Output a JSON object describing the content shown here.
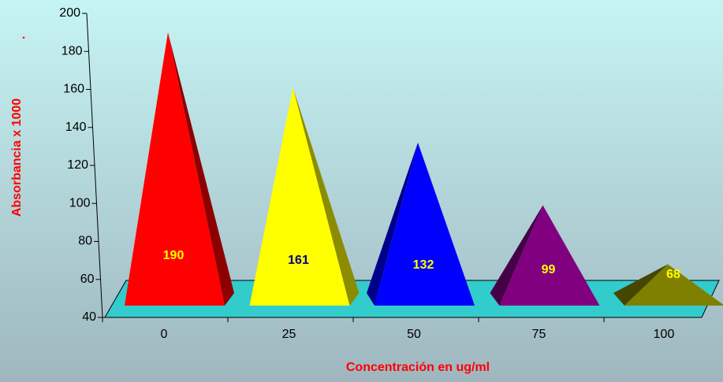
{
  "chart_data": {
    "type": "pyramid",
    "x_label": "Concentración en ug/ml",
    "y_label": "Absorbancia x 1000",
    "annotation": ".",
    "categories": [
      "0",
      "25",
      "50",
      "75",
      "100"
    ],
    "values": [
      190,
      161,
      132,
      99,
      68
    ],
    "colors": [
      "#ff0000",
      "#ffff00",
      "#0000ff",
      "#800080",
      "#808000"
    ],
    "label_colors": [
      "#ffff00",
      "#000080",
      "#ffff00",
      "#ffff00",
      "#ffff00"
    ],
    "ylim": [
      40,
      200
    ],
    "yticks": [
      40,
      60,
      80,
      100,
      120,
      140,
      160,
      180,
      200
    ]
  }
}
